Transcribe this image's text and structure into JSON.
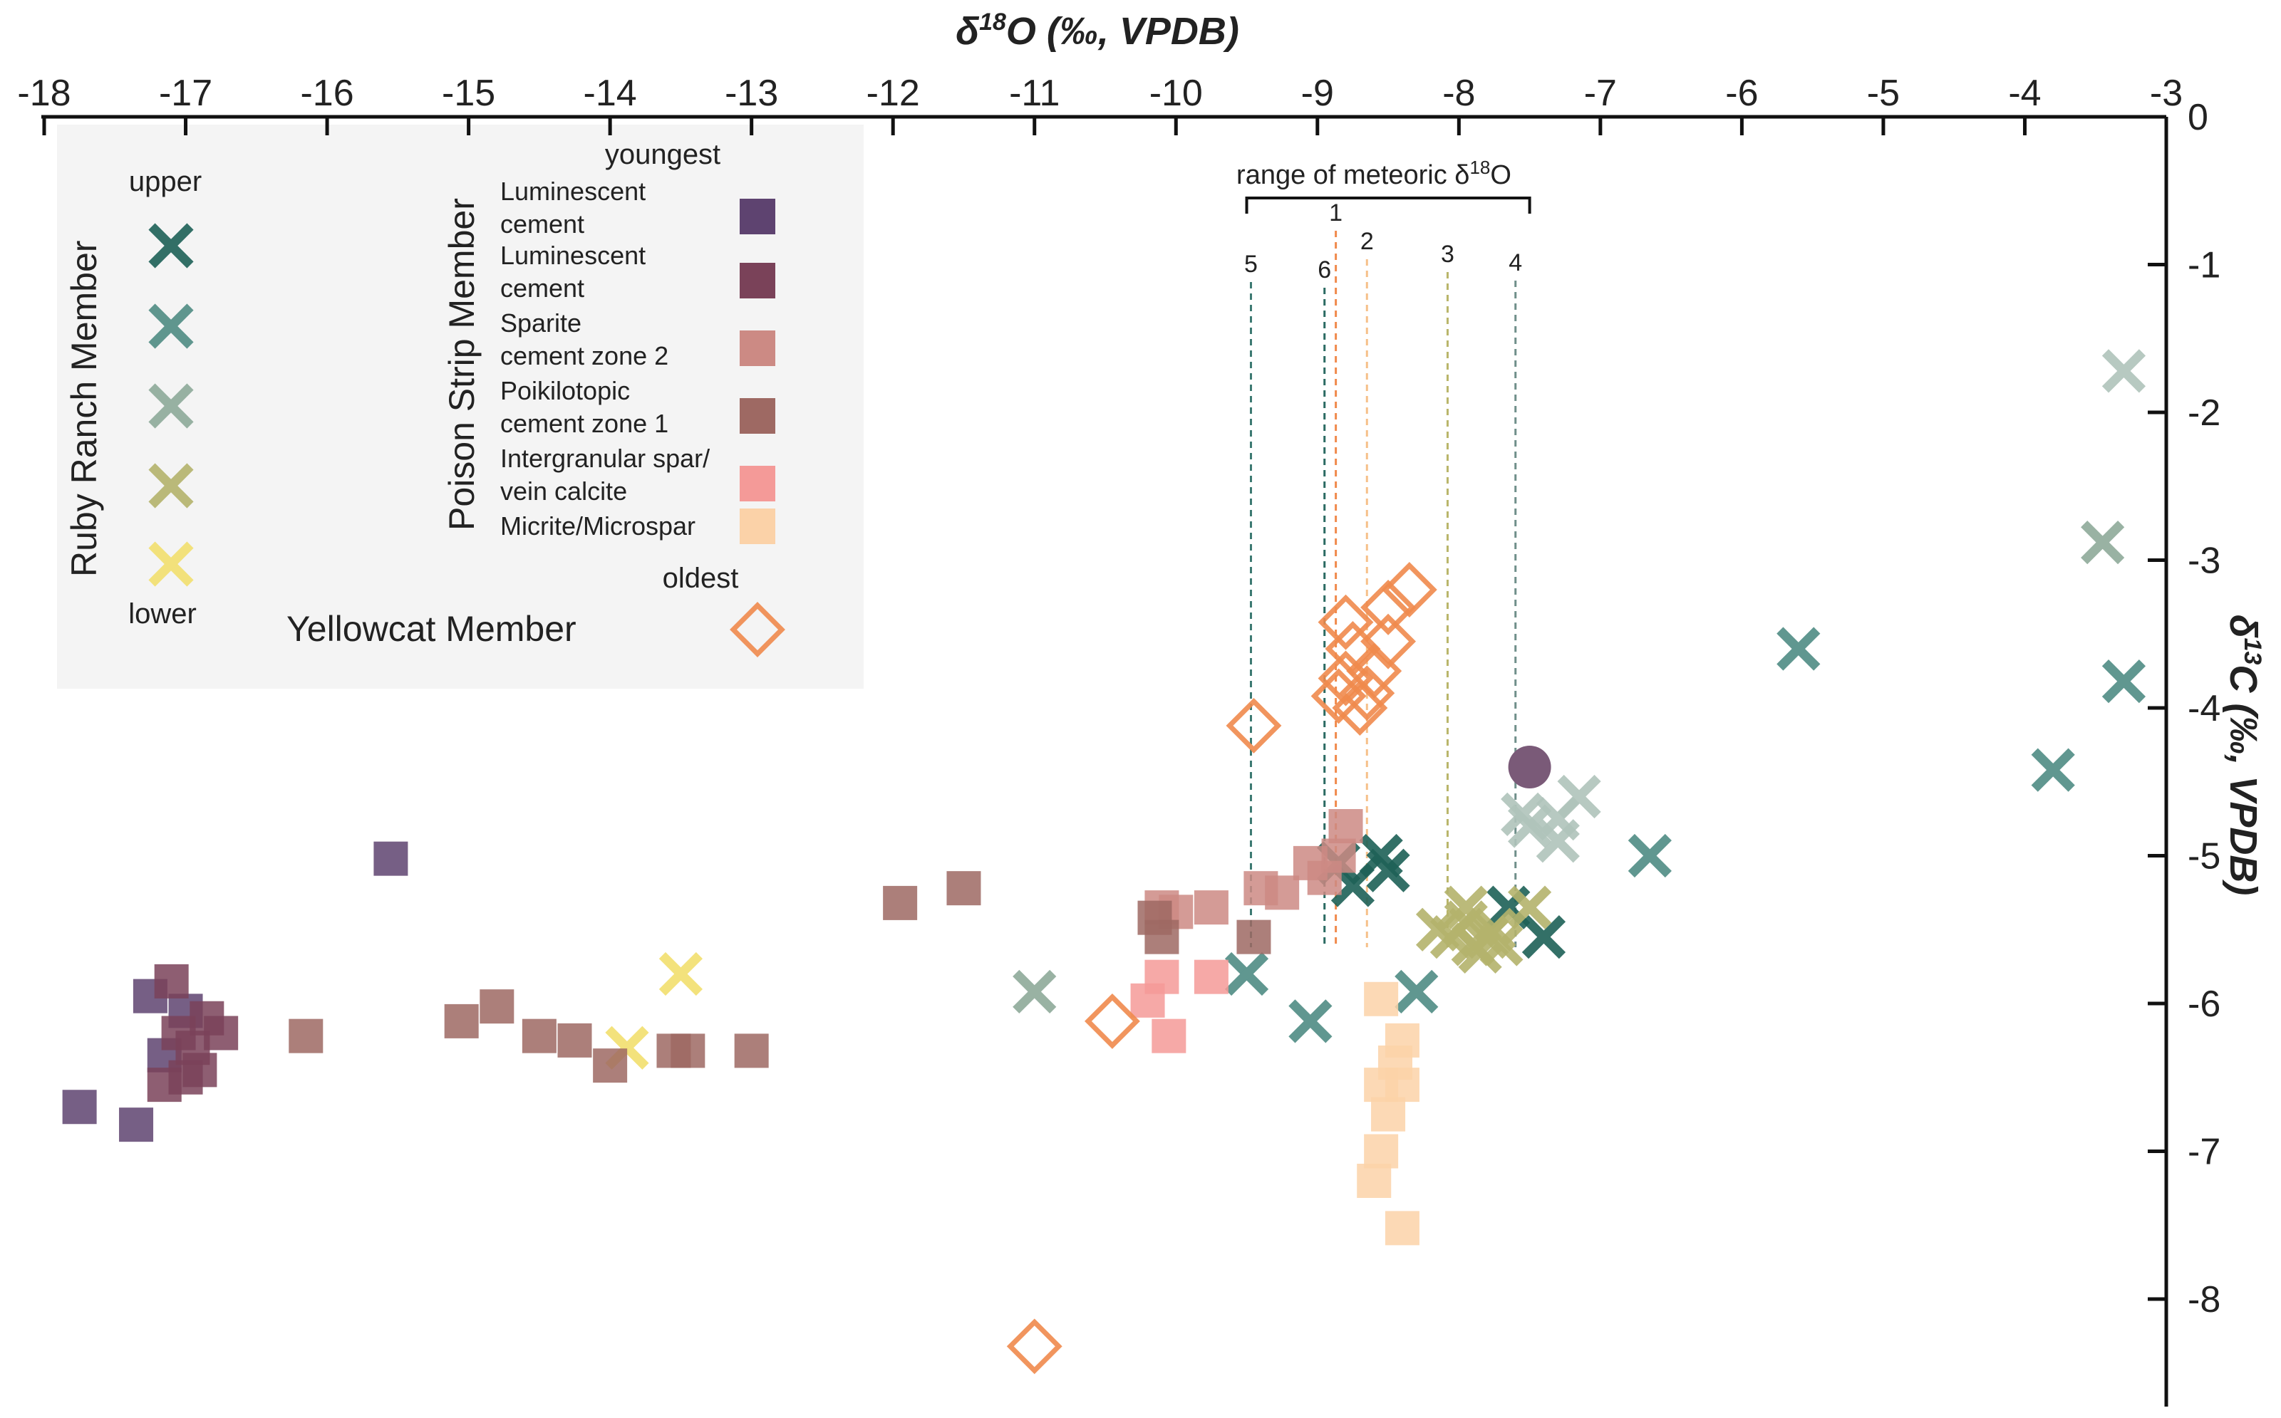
{
  "chart_data": {
    "type": "scatter",
    "x_axis": {
      "label_main": "δ",
      "label_sup": "18",
      "label_rest": "O (‰, VPDB)",
      "range": [
        -18,
        -3
      ],
      "ticks": [
        -18,
        -17,
        -16,
        -15,
        -14,
        -13,
        -12,
        -11,
        -10,
        -9,
        -8,
        -7,
        -6,
        -5,
        -4,
        -3
      ],
      "tick_labels": [
        "-18",
        "-17",
        "-16",
        "-15",
        "-14",
        "-13",
        "-12",
        "-11",
        "-10",
        "-9",
        "-8",
        "-7",
        "-6",
        "-5",
        "-4",
        "-3"
      ],
      "position": "top"
    },
    "y_axis": {
      "label_main": "δ",
      "label_sup": "13",
      "label_rest": "C (‰, VPDB)",
      "range": [
        0,
        -8.8
      ],
      "ticks": [
        0,
        -1,
        -2,
        -3,
        -4,
        -5,
        -6,
        -7,
        -8
      ],
      "tick_labels": [
        "0",
        "-1",
        "-2",
        "-3",
        "-4",
        "-5",
        "-6",
        "-7",
        "-8"
      ],
      "position": "right"
    },
    "meteoric_range": {
      "label": "range of meteoric δ18O",
      "label_main": "range of meteoric δ",
      "label_sup": "18",
      "label_end": "O",
      "x_range": [
        -9.5,
        -7.5
      ],
      "lines": [
        {
          "id": "5",
          "x": -9.47,
          "color": "#3d7a72"
        },
        {
          "id": "6",
          "x": -8.95,
          "color": "#2b6a62"
        },
        {
          "id": "1",
          "x": -8.87,
          "color": "#f08a4c"
        },
        {
          "id": "2",
          "x": -8.65,
          "color": "#f6c08a"
        },
        {
          "id": "3",
          "x": -8.08,
          "color": "#b9b56a"
        },
        {
          "id": "4",
          "x": -7.6,
          "color": "#6f8f8a"
        }
      ]
    },
    "legend": {
      "ruby_ranch_title": "Ruby Ranch Member",
      "upper_label": "upper",
      "lower_label": "lower",
      "poison_strip_title": "Poison Strip Member",
      "youngest_label": "youngest",
      "oldest_label": "oldest",
      "poison_entries": [
        {
          "line1": "Luminescent",
          "line2": "cement",
          "color": "#5e4370"
        },
        {
          "line1": "Luminescent",
          "line2": "cement",
          "color": "#7a4259"
        },
        {
          "line1": "Sparite",
          "line2": "cement zone 2",
          "color": "#cc8a84"
        },
        {
          "line1": "Poikilotopic",
          "line2": "cement zone 1",
          "color": "#9e6963"
        },
        {
          "line1": "Intergranular spar/",
          "line2": "vein calcite",
          "color": "#f49a98"
        },
        {
          "line1": "Micrite/Microspar",
          "line2": "",
          "color": "#fbd2a8"
        }
      ],
      "yellowcat_label": "Yellowcat Member",
      "ruby_colors": [
        "#1e6157",
        "#4f8c84",
        "#8eaa9a",
        "#b4b36c",
        "#f2df6e"
      ]
    },
    "series": [
      {
        "name": "Ruby Ranch upper 1",
        "marker": "x",
        "color": "#1e6157",
        "points": [
          [
            -8.75,
            -5.2
          ],
          [
            -8.5,
            -5.1
          ],
          [
            -8.55,
            -5.0
          ],
          [
            -8.85,
            -5.05
          ],
          [
            -7.4,
            -5.55
          ],
          [
            -7.65,
            -5.35
          ]
        ]
      },
      {
        "name": "Ruby Ranch upper 2",
        "marker": "x",
        "color": "#4f8c84",
        "points": [
          [
            -5.6,
            -3.6
          ],
          [
            -3.3,
            -3.82
          ],
          [
            -3.8,
            -4.42
          ],
          [
            -6.65,
            -5.0
          ],
          [
            -9.5,
            -5.8
          ],
          [
            -9.05,
            -6.12
          ],
          [
            -8.3,
            -5.92
          ]
        ]
      },
      {
        "name": "Ruby Ranch upper 3",
        "marker": "x",
        "color": "#8eaa9a",
        "points": [
          [
            -11.0,
            -5.92
          ],
          [
            -3.45,
            -2.88
          ]
        ]
      },
      {
        "name": "Ruby Ranch upper 4",
        "marker": "x",
        "color": "#b0c4bb",
        "points": [
          [
            -3.3,
            -1.72
          ],
          [
            -7.15,
            -4.6
          ],
          [
            -7.3,
            -4.75
          ],
          [
            -7.5,
            -4.8
          ],
          [
            -7.55,
            -4.72
          ],
          [
            -7.3,
            -4.9
          ]
        ]
      },
      {
        "name": "Ruby Ranch lower 1",
        "marker": "x",
        "color": "#b4b36c",
        "points": [
          [
            -8.05,
            -5.55
          ],
          [
            -7.95,
            -5.45
          ],
          [
            -7.9,
            -5.6
          ],
          [
            -7.8,
            -5.55
          ],
          [
            -7.75,
            -5.5
          ],
          [
            -7.85,
            -5.65
          ],
          [
            -7.95,
            -5.35
          ],
          [
            -8.15,
            -5.5
          ],
          [
            -7.7,
            -5.6
          ],
          [
            -7.5,
            -5.35
          ]
        ]
      },
      {
        "name": "Ruby Ranch lower 2",
        "marker": "x",
        "color": "#f2df6e",
        "points": [
          [
            -13.5,
            -5.8
          ],
          [
            -13.88,
            -6.3
          ]
        ]
      },
      {
        "name": "Poison Strip luminescent 1",
        "marker": "square",
        "color": "#5e4370",
        "points": [
          [
            -17.75,
            -6.7
          ],
          [
            -17.35,
            -6.82
          ],
          [
            -15.55,
            -5.02
          ],
          [
            -17.25,
            -5.95
          ],
          [
            -17.15,
            -6.35
          ],
          [
            -17.0,
            -6.05
          ]
        ]
      },
      {
        "name": "Poison Strip luminescent 2",
        "marker": "square",
        "color": "#7a4259",
        "points": [
          [
            -17.1,
            -5.85
          ],
          [
            -17.05,
            -6.2
          ],
          [
            -16.9,
            -6.45
          ],
          [
            -16.85,
            -6.1
          ],
          [
            -17.15,
            -6.55
          ],
          [
            -16.95,
            -6.3
          ],
          [
            -16.75,
            -6.2
          ],
          [
            -17.0,
            -6.5
          ]
        ]
      },
      {
        "name": "Poison Strip sparite zone 2",
        "marker": "square",
        "color": "#cc8a84",
        "points": [
          [
            -9.75,
            -5.35
          ],
          [
            -9.4,
            -5.22
          ],
          [
            -9.25,
            -5.25
          ],
          [
            -9.05,
            -5.05
          ],
          [
            -8.95,
            -5.15
          ],
          [
            -8.8,
            -4.8
          ],
          [
            -8.85,
            -5.0
          ],
          [
            -10.1,
            -5.35
          ],
          [
            -10.0,
            -5.38
          ]
        ]
      },
      {
        "name": "Poison Strip poikilotopic zone 1",
        "marker": "square",
        "color": "#9e6963",
        "points": [
          [
            -16.15,
            -6.22
          ],
          [
            -15.05,
            -6.12
          ],
          [
            -14.8,
            -6.02
          ],
          [
            -14.5,
            -6.22
          ],
          [
            -14.25,
            -6.25
          ],
          [
            -14.0,
            -6.42
          ],
          [
            -13.55,
            -6.32
          ],
          [
            -13.45,
            -6.32
          ],
          [
            -13.0,
            -6.32
          ],
          [
            -11.95,
            -5.32
          ],
          [
            -11.5,
            -5.22
          ],
          [
            -10.15,
            -5.42
          ],
          [
            -10.1,
            -5.55
          ],
          [
            -9.45,
            -5.55
          ]
        ]
      },
      {
        "name": "Poison Strip intergranular spar",
        "marker": "square",
        "color": "#f49a98",
        "points": [
          [
            -10.1,
            -5.82
          ],
          [
            -9.75,
            -5.82
          ],
          [
            -10.2,
            -5.98
          ],
          [
            -10.05,
            -6.22
          ]
        ]
      },
      {
        "name": "Poison Strip micrite",
        "marker": "square",
        "color": "#fbd2a8",
        "points": [
          [
            -8.55,
            -5.97
          ],
          [
            -8.4,
            -6.25
          ],
          [
            -8.45,
            -6.4
          ],
          [
            -8.55,
            -6.55
          ],
          [
            -8.4,
            -6.55
          ],
          [
            -8.5,
            -6.75
          ],
          [
            -8.55,
            -7.0
          ],
          [
            -8.6,
            -7.2
          ],
          [
            -8.4,
            -7.52
          ]
        ]
      },
      {
        "name": "Yellowcat Member",
        "marker": "diamond",
        "color": "#f08a4c",
        "points": [
          [
            -9.45,
            -4.12
          ],
          [
            -11.0,
            -8.32
          ],
          [
            -10.45,
            -6.12
          ],
          [
            -8.8,
            -3.42
          ],
          [
            -8.75,
            -3.6
          ],
          [
            -8.8,
            -3.8
          ],
          [
            -8.65,
            -3.9
          ],
          [
            -8.6,
            -3.75
          ],
          [
            -8.85,
            -3.92
          ],
          [
            -8.5,
            -3.55
          ],
          [
            -8.5,
            -3.32
          ],
          [
            -8.35,
            -3.2
          ],
          [
            -8.7,
            -4.0
          ]
        ]
      },
      {
        "name": "Single circle",
        "marker": "circle",
        "color": "#7a5a78",
        "points": [
          [
            -7.5,
            -4.4
          ]
        ]
      }
    ]
  }
}
